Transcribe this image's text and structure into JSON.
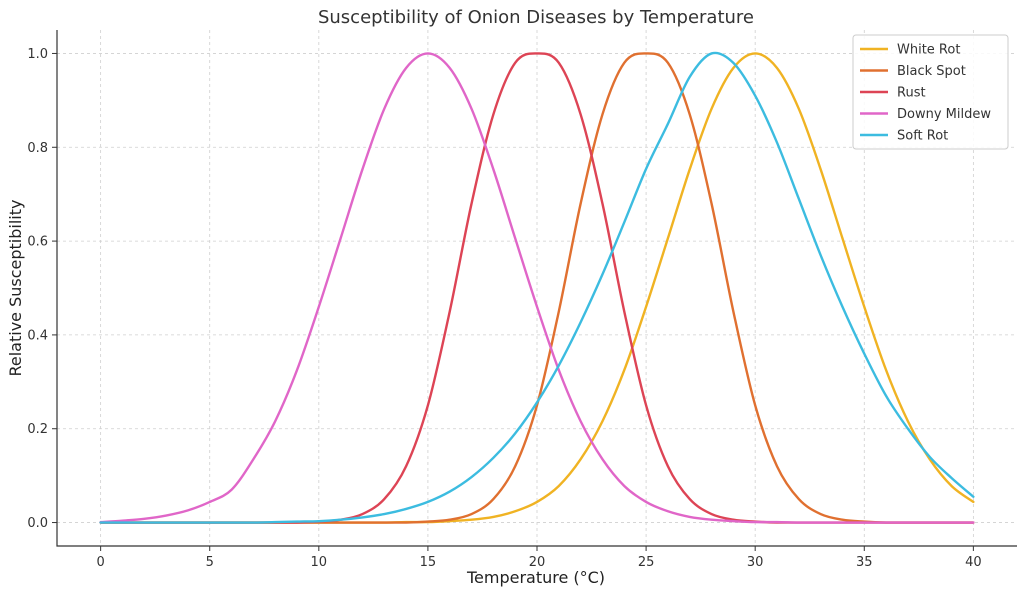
{
  "chart_data": {
    "type": "line",
    "title": "Susceptibility of Onion Diseases by Temperature",
    "xlabel": "Temperature (°C)",
    "ylabel": "Relative Susceptibility",
    "xlim": [
      -2,
      42
    ],
    "ylim": [
      -0.05,
      1.05
    ],
    "xticks": [
      0,
      5,
      10,
      15,
      20,
      25,
      30,
      35,
      40
    ],
    "yticks": [
      0.0,
      0.2,
      0.4,
      0.6,
      0.8,
      1.0
    ],
    "ytick_format": "0.0",
    "grid": true,
    "legend_position": "top-right",
    "x": [
      0,
      1,
      2,
      3,
      4,
      5,
      6,
      7,
      8,
      9,
      10,
      11,
      12,
      13,
      14,
      15,
      16,
      17,
      18,
      19,
      20,
      21,
      22,
      23,
      24,
      25,
      26,
      27,
      28,
      29,
      30,
      31,
      32,
      33,
      34,
      35,
      36,
      37,
      38,
      39,
      40
    ],
    "series": [
      {
        "name": "White Rot",
        "color": "#f0b323",
        "values": [
          0,
          0,
          0,
          0,
          0,
          0,
          0,
          0,
          0,
          0,
          0,
          0,
          0,
          0,
          0.001,
          0.001,
          0.003,
          0.006,
          0.012,
          0.024,
          0.044,
          0.078,
          0.135,
          0.216,
          0.325,
          0.46,
          0.606,
          0.753,
          0.882,
          0.969,
          1.0,
          0.969,
          0.882,
          0.753,
          0.606,
          0.46,
          0.325,
          0.216,
          0.135,
          0.078,
          0.044
        ]
      },
      {
        "name": "Black Spot",
        "color": "#e07030",
        "values": [
          0,
          0,
          0,
          0,
          0,
          0,
          0,
          0,
          0,
          0,
          0,
          0,
          0,
          0,
          0,
          0.002,
          0.006,
          0.018,
          0.05,
          0.12,
          0.25,
          0.45,
          0.68,
          0.87,
          0.98,
          1.0,
          0.98,
          0.87,
          0.68,
          0.45,
          0.25,
          0.12,
          0.05,
          0.018,
          0.006,
          0.002,
          0,
          0,
          0,
          0,
          0
        ]
      },
      {
        "name": "Rust",
        "color": "#dd4455",
        "values": [
          0,
          0,
          0,
          0,
          0,
          0,
          0,
          0,
          0,
          0,
          0.002,
          0.006,
          0.018,
          0.05,
          0.12,
          0.25,
          0.45,
          0.68,
          0.87,
          0.98,
          1.0,
          0.98,
          0.87,
          0.68,
          0.45,
          0.25,
          0.12,
          0.05,
          0.018,
          0.006,
          0.002,
          0,
          0,
          0,
          0,
          0,
          0,
          0,
          0,
          0,
          0
        ]
      },
      {
        "name": "Downy Mildew",
        "color": "#e066c8",
        "values": [
          0.001,
          0.004,
          0.008,
          0.015,
          0.026,
          0.044,
          0.07,
          0.135,
          0.216,
          0.325,
          0.46,
          0.606,
          0.753,
          0.882,
          0.969,
          1.0,
          0.969,
          0.882,
          0.753,
          0.606,
          0.46,
          0.325,
          0.216,
          0.135,
          0.078,
          0.044,
          0.024,
          0.012,
          0.006,
          0.003,
          0.001,
          0.001,
          0,
          0,
          0,
          0,
          0,
          0,
          0,
          0,
          0
        ]
      },
      {
        "name": "Soft Rot",
        "color": "#3cbce0",
        "values": [
          0,
          0,
          0,
          0,
          0,
          0,
          0,
          0,
          0.001,
          0.002,
          0.003,
          0.006,
          0.011,
          0.018,
          0.029,
          0.044,
          0.066,
          0.097,
          0.138,
          0.19,
          0.256,
          0.335,
          0.427,
          0.529,
          0.64,
          0.754,
          0.85,
          0.95,
          1.0,
          0.98,
          0.91,
          0.81,
          0.69,
          0.57,
          0.46,
          0.36,
          0.27,
          0.2,
          0.14,
          0.095,
          0.055
        ]
      }
    ]
  }
}
